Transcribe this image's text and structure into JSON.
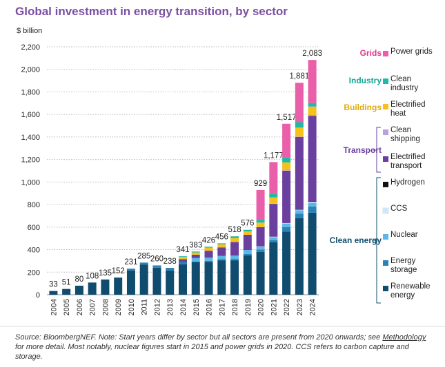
{
  "chart_data": {
    "type": "stacked-bar",
    "title": "Global investment in energy transition, by sector",
    "y_label": "$ billion",
    "categories": [
      "2004",
      "2005",
      "2006",
      "2007",
      "2008",
      "2009",
      "2010",
      "2011",
      "2012",
      "2013",
      "2014",
      "2015",
      "2016",
      "2017",
      "2018",
      "2019",
      "2020",
      "2021",
      "2022",
      "2023",
      "2024"
    ],
    "series": [
      {
        "name": "Renewable energy",
        "color": "#0f4c6e",
        "values": [
          33,
          51,
          80,
          108,
          135,
          152,
          215,
          268,
          240,
          215,
          270,
          290,
          290,
          305,
          305,
          350,
          380,
          465,
          560,
          680,
          728
        ]
      },
      {
        "name": "Energy storage",
        "color": "#2a82b8",
        "values": [
          0,
          0,
          0,
          0,
          0,
          0,
          16,
          17,
          20,
          23,
          20,
          5,
          10,
          10,
          12,
          12,
          20,
          20,
          40,
          40,
          55
        ]
      },
      {
        "name": "Nuclear",
        "color": "#5bb8e6",
        "values": [
          0,
          0,
          0,
          0,
          0,
          0,
          0,
          0,
          0,
          0,
          0,
          30,
          30,
          30,
          30,
          35,
          25,
          25,
          30,
          30,
          33
        ]
      },
      {
        "name": "CCS",
        "color": "#cfe8f6",
        "values": [
          0,
          0,
          0,
          0,
          0,
          0,
          0,
          0,
          0,
          0,
          0,
          0,
          0,
          0,
          0,
          0,
          3,
          5,
          5,
          5,
          10
        ]
      },
      {
        "name": "Hydrogen",
        "color": "#111111",
        "values": [
          0,
          0,
          0,
          0,
          0,
          0,
          0,
          0,
          0,
          0,
          0,
          0,
          0,
          0,
          0,
          0,
          1,
          1,
          1,
          5,
          5
        ]
      },
      {
        "name": "Electrified transport",
        "color": "#6b3f9e",
        "values": [
          0,
          0,
          0,
          0,
          0,
          0,
          0,
          0,
          0,
          0,
          25,
          30,
          60,
          75,
          120,
          135,
          170,
          290,
          465,
          640,
          757
        ]
      },
      {
        "name": "Clean shipping",
        "color": "#b9a2dc",
        "values": [
          0,
          0,
          0,
          0,
          0,
          0,
          0,
          0,
          0,
          0,
          0,
          0,
          0,
          0,
          0,
          0,
          1,
          2,
          3,
          3,
          7
        ]
      },
      {
        "name": "Electrified heat",
        "color": "#f5c21b",
        "values": [
          0,
          0,
          0,
          0,
          0,
          0,
          0,
          0,
          0,
          0,
          20,
          20,
          28,
          28,
          35,
          30,
          40,
          55,
          70,
          80,
          75
        ]
      },
      {
        "name": "Clean industry",
        "color": "#1fb9a6",
        "values": [
          0,
          0,
          0,
          0,
          0,
          0,
          0,
          0,
          0,
          0,
          6,
          8,
          8,
          8,
          16,
          14,
          25,
          34,
          43,
          48,
          30
        ]
      },
      {
        "name": "Power grids",
        "color": "#e95fa9",
        "values": [
          0,
          0,
          0,
          0,
          0,
          0,
          0,
          0,
          0,
          0,
          0,
          0,
          0,
          0,
          0,
          0,
          264,
          280,
          300,
          350,
          383
        ]
      }
    ],
    "totals": [
      33,
      51,
      80,
      108,
      135,
      152,
      231,
      285,
      260,
      238,
      341,
      383,
      426,
      456,
      518,
      576,
      929,
      1177,
      1517,
      1881,
      2083
    ],
    "total_labels": [
      "33",
      "51",
      "80",
      "108",
      "135",
      "152",
      "231",
      "285",
      "260",
      "238",
      "341",
      "383",
      "426",
      "456",
      "518",
      "576",
      "929",
      "1,177",
      "1,517",
      "1,881",
      "2,083"
    ],
    "groups": [
      {
        "name": "Grids",
        "color": "#e0338f"
      },
      {
        "name": "Industry",
        "color": "#14a596"
      },
      {
        "name": "Buildings",
        "color": "#e3a90a"
      },
      {
        "name": "Transport",
        "color": "#6b3f9e"
      },
      {
        "name": "Clean energy",
        "color": "#0f4c6e"
      }
    ],
    "ylim": [
      0,
      2200
    ],
    "yticks": [
      0,
      200,
      400,
      600,
      800,
      {
        "value": 1000,
        "label": "1,000"
      },
      {
        "value": 1200,
        "label": "1,200"
      },
      {
        "value": 1400,
        "label": "1,400"
      },
      {
        "value": 1600,
        "label": "1,600"
      },
      {
        "value": 1800,
        "label": "1,800"
      },
      {
        "value": 2000,
        "label": "2,000"
      },
      {
        "value": 2200,
        "label": "2,200"
      }
    ],
    "grid": true
  },
  "source": {
    "before": "Source: BloombergNEF. Note: Start years differ by sector but all sectors are present from 2020 onwards; see",
    "link": "Methodology",
    "after": "for more detail. Most notably, nuclear figures start in 2015 and power grids in 2020. CCS refers to carbon capture and storage."
  }
}
